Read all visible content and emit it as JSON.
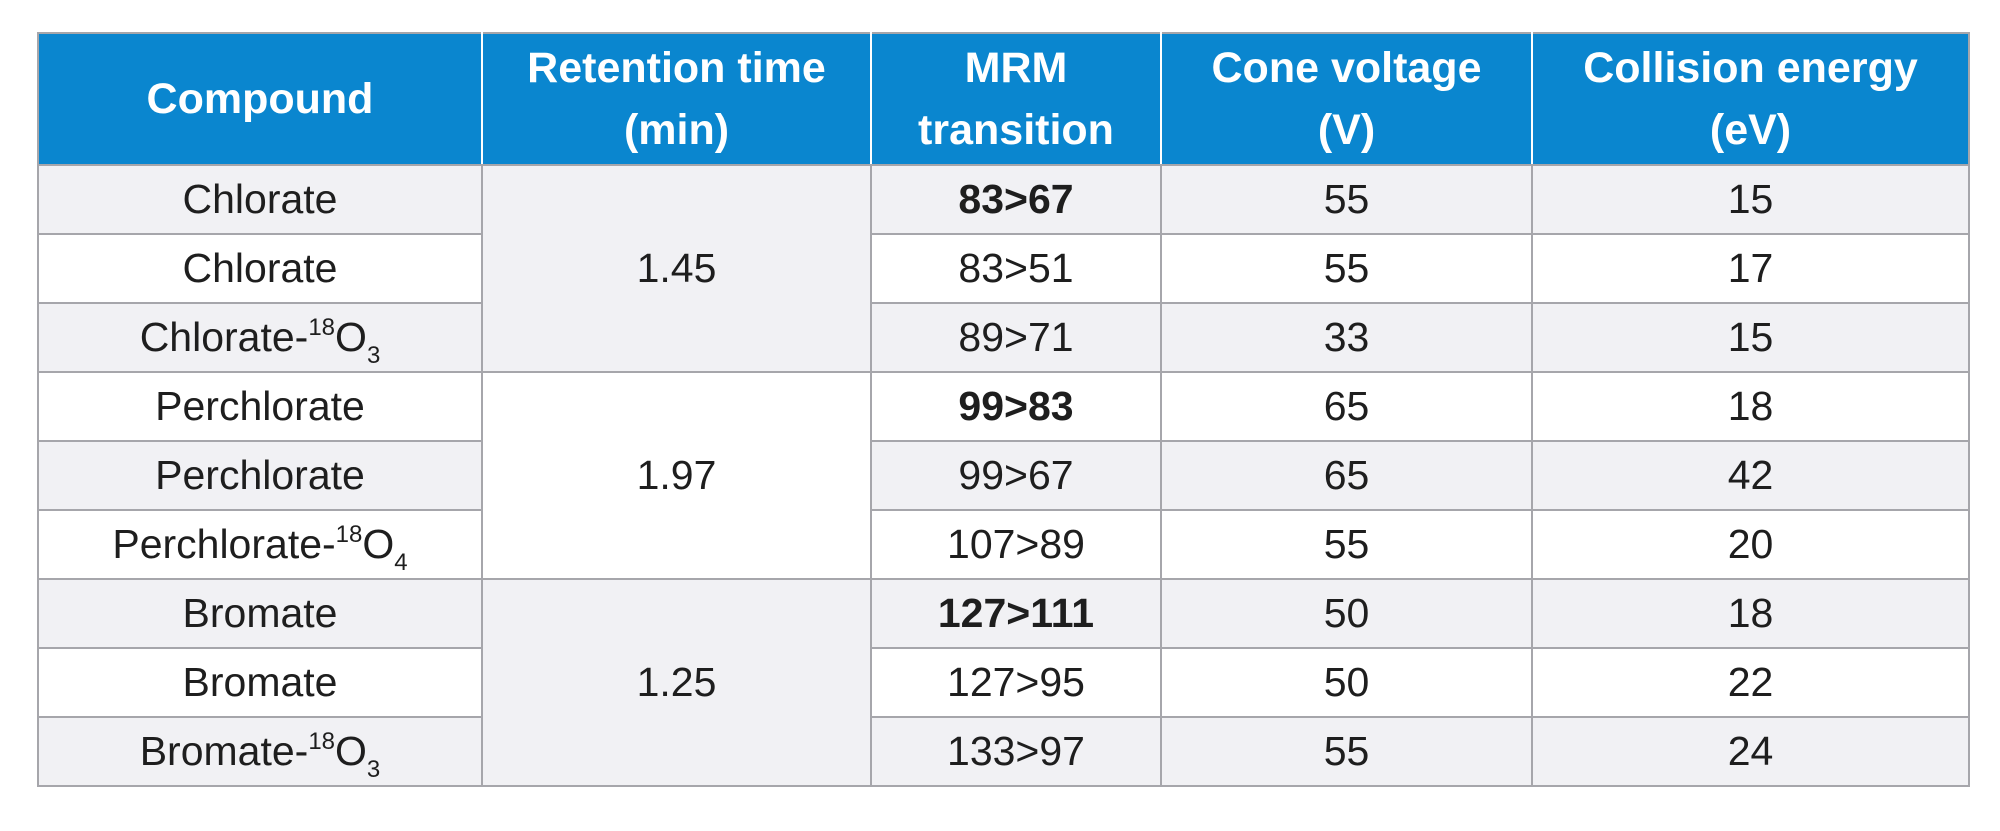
{
  "columns": [
    {
      "line1": "Compound",
      "line2": ""
    },
    {
      "line1": "Retention time",
      "line2": "(min)"
    },
    {
      "line1": "MRM",
      "line2": "transition"
    },
    {
      "line1": "Cone voltage",
      "line2": "(V)"
    },
    {
      "line1": "Collision energy",
      "line2": "(eV)"
    }
  ],
  "groups": [
    {
      "retention_time": "1.45",
      "rows": [
        {
          "compound": "Chlorate",
          "iso": "",
          "sub": "",
          "mrm": "83>67",
          "quantifier": true,
          "cone": "55",
          "ce": "15"
        },
        {
          "compound": "Chlorate",
          "iso": "",
          "sub": "",
          "mrm": "83>51",
          "quantifier": false,
          "cone": "55",
          "ce": "17"
        },
        {
          "compound": "Chlorate-",
          "iso": "18",
          "sub": "3",
          "mrm": "89>71",
          "quantifier": false,
          "cone": "33",
          "ce": "15"
        }
      ]
    },
    {
      "retention_time": "1.97",
      "rows": [
        {
          "compound": "Perchlorate",
          "iso": "",
          "sub": "",
          "mrm": "99>83",
          "quantifier": true,
          "cone": "65",
          "ce": "18"
        },
        {
          "compound": "Perchlorate",
          "iso": "",
          "sub": "",
          "mrm": "99>67",
          "quantifier": false,
          "cone": "65",
          "ce": "42"
        },
        {
          "compound": "Perchlorate-",
          "iso": "18",
          "sub": "4",
          "mrm": "107>89",
          "quantifier": false,
          "cone": "55",
          "ce": "20"
        }
      ]
    },
    {
      "retention_time": "1.25",
      "rows": [
        {
          "compound": "Bromate",
          "iso": "",
          "sub": "",
          "mrm": "127>111",
          "quantifier": true,
          "cone": "50",
          "ce": "18"
        },
        {
          "compound": "Bromate",
          "iso": "",
          "sub": "",
          "mrm": "127>95",
          "quantifier": false,
          "cone": "50",
          "ce": "22"
        },
        {
          "compound": "Bromate-",
          "iso": "18",
          "sub": "3",
          "mrm": "133>97",
          "quantifier": false,
          "cone": "55",
          "ce": "24"
        }
      ]
    }
  ],
  "colors": {
    "header_bg": "#0a86cf",
    "header_text": "#ffffff",
    "row_shade": "#f1f1f4",
    "row_plain": "#ffffff",
    "grid": "#a6a6ab"
  }
}
